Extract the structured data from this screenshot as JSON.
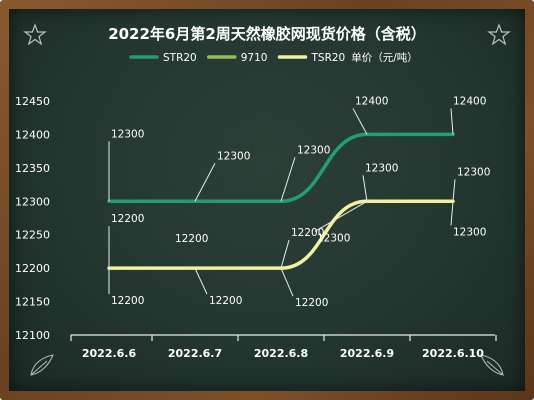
{
  "chart_data": {
    "type": "line",
    "title": "2022年6月第2周天然橡胶网现货价格（含税）",
    "xlabel": "",
    "ylabel": "",
    "categories": [
      "2022.6.6",
      "2022.6.7",
      "2022.6.8",
      "2022.6.9",
      "2022.6.10"
    ],
    "ylim": [
      12100,
      12450
    ],
    "yticks": [
      12100,
      12150,
      12200,
      12250,
      12300,
      12350,
      12400,
      12450
    ],
    "legend_position": "top",
    "grid": false,
    "legend_suffix": "单价（元/吨）",
    "series": [
      {
        "name": "STR20",
        "values": [
          12300,
          12300,
          12300,
          12400,
          12400
        ],
        "color": "#1f9e7a",
        "labels": [
          "12300",
          "12300",
          "12300",
          "12400",
          "12400"
        ]
      },
      {
        "name": "9710",
        "values": [
          null,
          null,
          null,
          null,
          null
        ],
        "color": "#8fc34a",
        "labels": []
      },
      {
        "name": "TSR20",
        "values": [
          12200,
          12200,
          12200,
          12300,
          12300
        ],
        "color": "#f2f29a",
        "labels": [
          "12200",
          "12200",
          "12200",
          "12300",
          "12300"
        ],
        "extra_labels": [
          "12200",
          "12200",
          "12200",
          "12300",
          "12300"
        ]
      }
    ]
  },
  "colors": {
    "axis_text": "#ffffff",
    "background": "#243630",
    "frame": "#6b4220"
  },
  "decorations": {
    "corner_icons": [
      "star-icon",
      "star-icon",
      "leaf-icon",
      "leaf-icon"
    ]
  }
}
